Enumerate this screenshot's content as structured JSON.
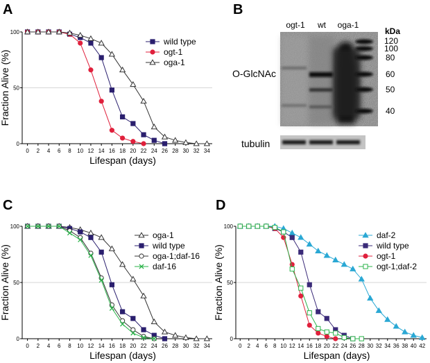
{
  "panels": {
    "A": {
      "letter": "A"
    },
    "B": {
      "letter": "B",
      "lanes": [
        "ogt-1",
        "wt",
        "oga-1"
      ],
      "blot_label": "O-GlcNAc",
      "loading_label": "tubulin",
      "marker_unit": "kDa",
      "markers": [
        "120",
        "100",
        "80",
        "60",
        "50",
        "40"
      ]
    },
    "C": {
      "letter": "C"
    },
    "D": {
      "letter": "D"
    }
  },
  "chart_data": [
    {
      "panel": "A",
      "type": "line",
      "xlabel": "Lifespan (days)",
      "ylabel": "Fraction Alive (%)",
      "xlim": [
        -1,
        35
      ],
      "ylim": [
        0,
        100
      ],
      "xticks": [
        "0",
        "2",
        "4",
        "6",
        "8",
        "10",
        "12",
        "14",
        "16",
        "18",
        "20",
        "22",
        "24",
        "26",
        "28",
        "30",
        "32",
        "34"
      ],
      "yticks": [
        "0",
        "50",
        "100"
      ],
      "reference_line": 50,
      "legend_position": "top-right",
      "series": [
        {
          "name": "wild type",
          "color": "#2a1f6e",
          "marker": "square-filled",
          "x": [
            0,
            2,
            4,
            6,
            8,
            10,
            12,
            14,
            16,
            18,
            20,
            22,
            24,
            26
          ],
          "y": [
            100,
            100,
            100,
            100,
            98,
            95,
            90,
            77,
            48,
            24,
            18,
            8,
            3,
            0
          ]
        },
        {
          "name": "ogt-1",
          "color": "#e0203c",
          "marker": "circle-filled",
          "x": [
            0,
            2,
            4,
            6,
            8,
            10,
            12,
            14,
            16,
            18,
            20,
            22
          ],
          "y": [
            100,
            100,
            100,
            100,
            98,
            90,
            66,
            38,
            12,
            5,
            2,
            0
          ]
        },
        {
          "name": "oga-1",
          "color": "#333333",
          "marker": "triangle-open",
          "x": [
            0,
            2,
            4,
            6,
            8,
            10,
            12,
            14,
            16,
            18,
            20,
            22,
            24,
            26,
            28,
            30,
            32,
            34
          ],
          "y": [
            100,
            100,
            100,
            100,
            99,
            97,
            94,
            90,
            80,
            66,
            53,
            38,
            15,
            6,
            3,
            1,
            0,
            0
          ]
        }
      ]
    },
    {
      "panel": "C",
      "type": "line",
      "xlabel": "Lifespan (days)",
      "ylabel": "Fraction Alive (%)",
      "xlim": [
        -1,
        35
      ],
      "ylim": [
        0,
        100
      ],
      "xticks": [
        "0",
        "2",
        "4",
        "6",
        "8",
        "10",
        "12",
        "14",
        "16",
        "18",
        "20",
        "22",
        "24",
        "26",
        "28",
        "30",
        "32",
        "34"
      ],
      "yticks": [
        "0",
        "50",
        "100"
      ],
      "reference_line": 50,
      "legend_position": "top-right",
      "series": [
        {
          "name": "oga-1",
          "color": "#333333",
          "marker": "triangle-open",
          "x": [
            0,
            2,
            4,
            6,
            8,
            10,
            12,
            14,
            16,
            18,
            20,
            22,
            24,
            26,
            28,
            30,
            32,
            34
          ],
          "y": [
            100,
            100,
            100,
            100,
            99,
            97,
            94,
            90,
            80,
            66,
            53,
            38,
            15,
            6,
            3,
            1,
            0,
            0
          ]
        },
        {
          "name": "wild type",
          "color": "#2a1f6e",
          "marker": "square-filled",
          "x": [
            0,
            2,
            4,
            6,
            8,
            10,
            12,
            14,
            16,
            18,
            20,
            22,
            24,
            26
          ],
          "y": [
            100,
            100,
            100,
            100,
            98,
            95,
            90,
            77,
            48,
            24,
            18,
            8,
            3,
            0
          ]
        },
        {
          "name": "oga-1;daf-16",
          "color": "#333333",
          "marker": "circle-open",
          "x": [
            0,
            2,
            4,
            6,
            8,
            10,
            12,
            14,
            16,
            18,
            20,
            22,
            24
          ],
          "y": [
            100,
            100,
            100,
            100,
            96,
            90,
            76,
            54,
            30,
            16,
            8,
            2,
            0
          ]
        },
        {
          "name": "daf-16",
          "color": "#2bb34a",
          "marker": "x",
          "x": [
            0,
            2,
            4,
            6,
            8,
            10,
            12,
            14,
            16,
            18,
            20,
            22,
            24
          ],
          "y": [
            100,
            100,
            100,
            100,
            94,
            88,
            74,
            52,
            27,
            13,
            5,
            1,
            0
          ]
        }
      ]
    },
    {
      "panel": "D",
      "type": "line",
      "xlabel": "Lifespan (days)",
      "ylabel": "Fraction Alive (%)",
      "xlim": [
        -1,
        43
      ],
      "ylim": [
        0,
        100
      ],
      "xticks": [
        "0",
        "2",
        "4",
        "6",
        "8",
        "10",
        "12",
        "14",
        "16",
        "18",
        "20",
        "22",
        "24",
        "26",
        "28",
        "30",
        "32",
        "34",
        "36",
        "38",
        "40",
        "42"
      ],
      "yticks": [
        "0",
        "50",
        "100"
      ],
      "reference_line": 50,
      "legend_position": "top-right",
      "series": [
        {
          "name": "daf-2",
          "color": "#2aa8d4",
          "marker": "triangle-filled",
          "x": [
            0,
            2,
            4,
            6,
            8,
            10,
            12,
            14,
            16,
            18,
            20,
            22,
            24,
            26,
            28,
            30,
            32,
            34,
            36,
            38,
            40,
            42
          ],
          "y": [
            100,
            100,
            100,
            100,
            100,
            98,
            94,
            90,
            84,
            78,
            74,
            70,
            66,
            62,
            53,
            36,
            25,
            17,
            11,
            6,
            3,
            1
          ]
        },
        {
          "name": "wild type",
          "color": "#3a2a78",
          "marker": "square-filled",
          "x": [
            0,
            2,
            4,
            6,
            8,
            10,
            12,
            14,
            16,
            18,
            20,
            22,
            24,
            26
          ],
          "y": [
            100,
            100,
            100,
            100,
            98,
            95,
            90,
            77,
            48,
            24,
            18,
            8,
            3,
            0
          ]
        },
        {
          "name": "ogt-1",
          "color": "#e0203c",
          "marker": "circle-filled",
          "x": [
            0,
            2,
            4,
            6,
            8,
            10,
            12,
            14,
            16,
            18,
            20,
            22
          ],
          "y": [
            100,
            100,
            100,
            100,
            98,
            90,
            66,
            38,
            12,
            5,
            2,
            0
          ]
        },
        {
          "name": "ogt-1;daf-2",
          "color": "#2bb34a",
          "marker": "square-open",
          "x": [
            0,
            2,
            4,
            6,
            8,
            10,
            12,
            14,
            16,
            18,
            20,
            22,
            24,
            26,
            28
          ],
          "y": [
            100,
            100,
            100,
            100,
            99,
            95,
            62,
            45,
            23,
            9,
            6,
            5,
            1,
            0,
            0
          ]
        }
      ]
    }
  ]
}
